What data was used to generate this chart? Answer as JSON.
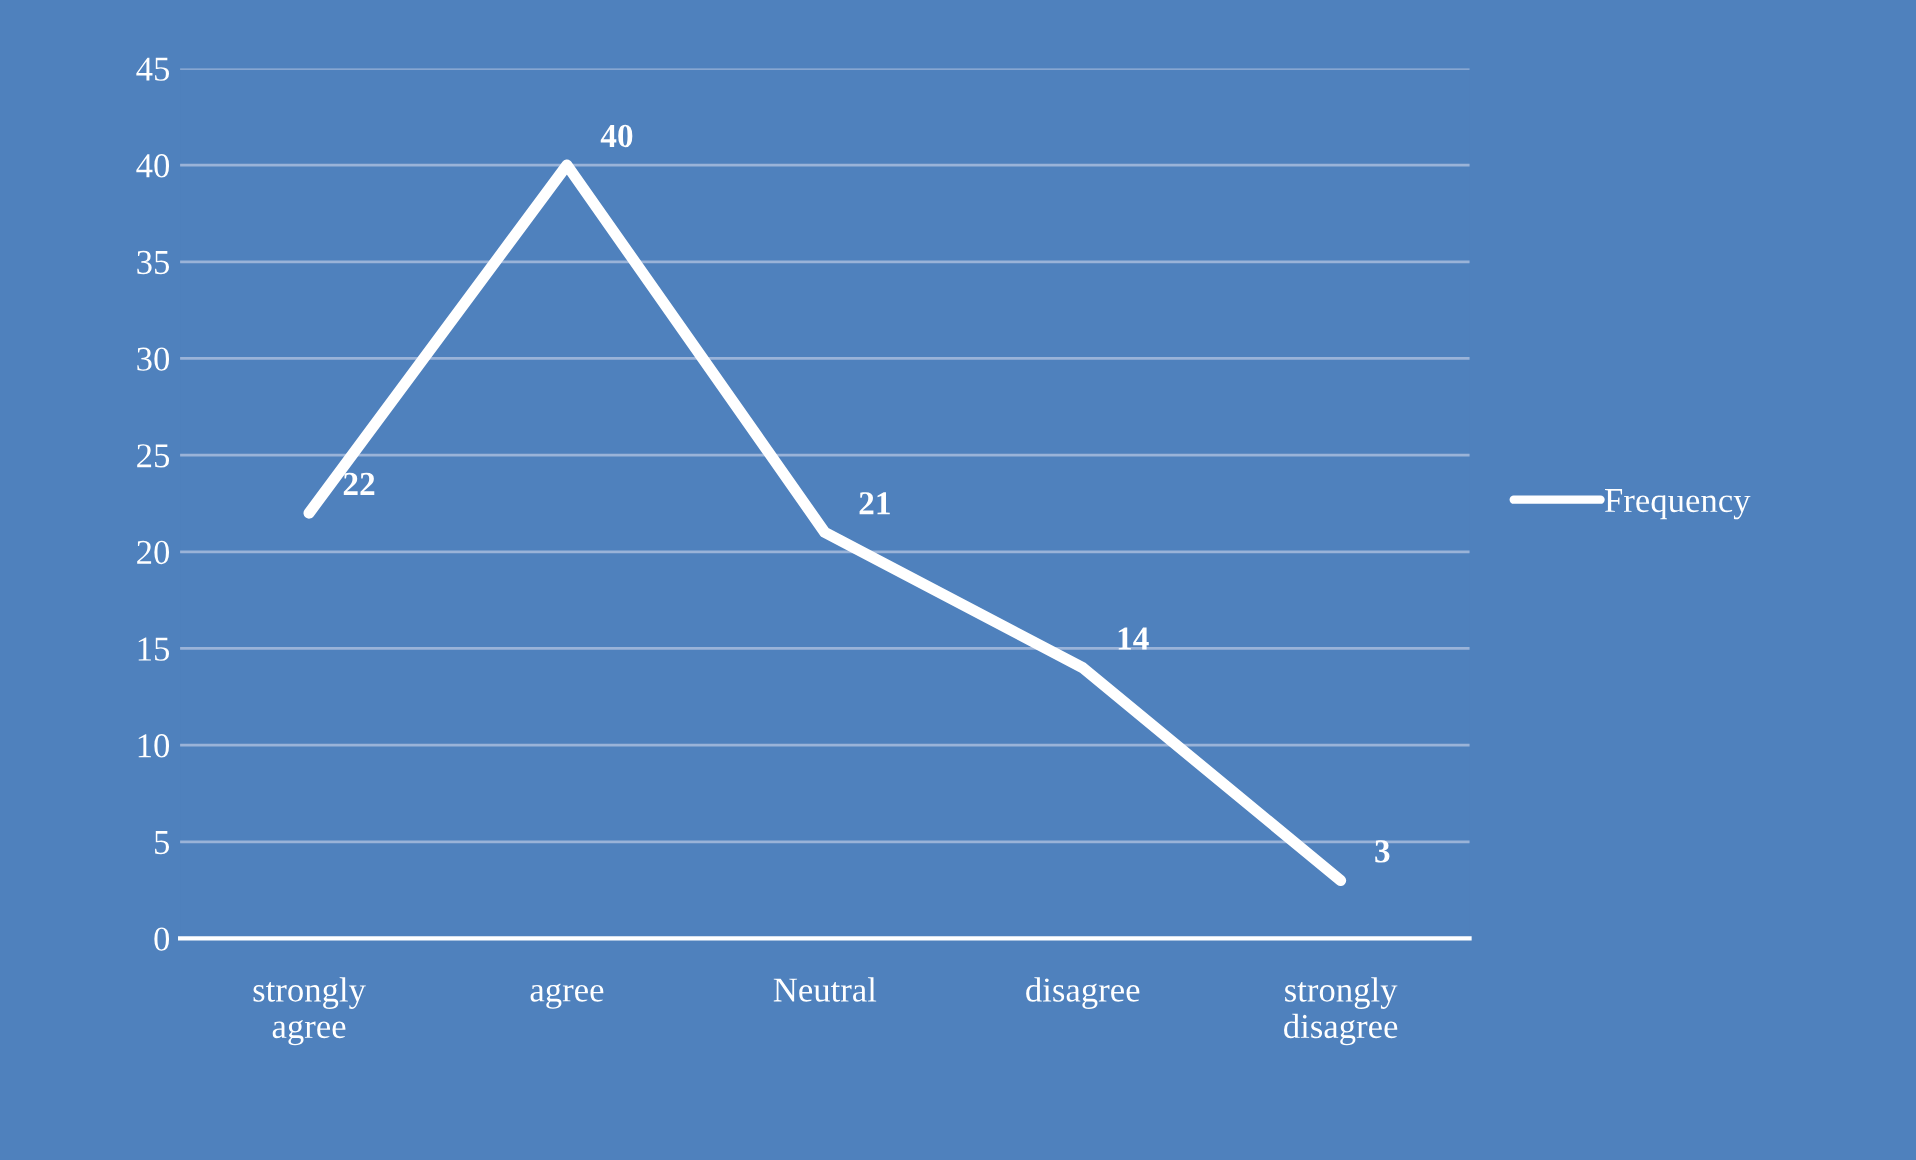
{
  "chart_data": {
    "type": "line",
    "categories": [
      "strongly\nagree",
      "agree",
      "Neutral",
      "disagree",
      "strongly\ndisagree"
    ],
    "series": [
      {
        "name": "Frequency",
        "color": "#ffffff",
        "values": [
          22,
          40,
          21,
          14,
          3
        ]
      }
    ],
    "ylim": [
      0,
      45
    ],
    "yticks": [
      0,
      5,
      10,
      15,
      20,
      25,
      30,
      35,
      40,
      45
    ],
    "grid": "y",
    "legend": "right",
    "data_labels": true,
    "marker": "none",
    "line_style": "solid"
  }
}
